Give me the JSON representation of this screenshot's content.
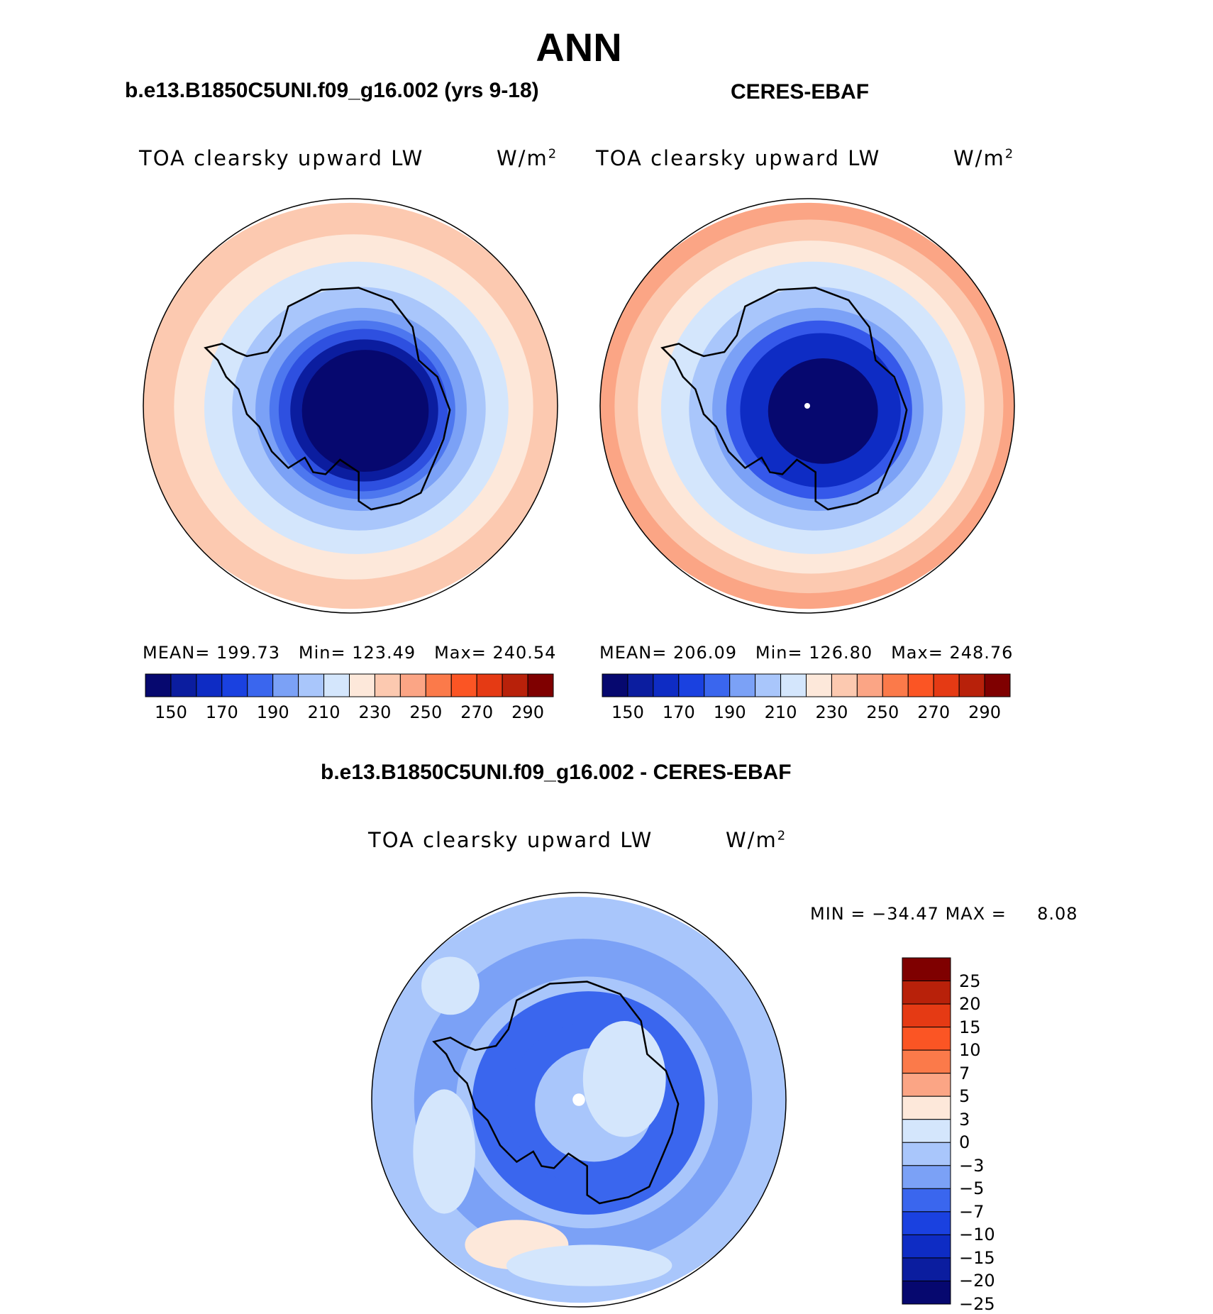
{
  "title": "ANN",
  "panels": [
    {
      "case": "b.e13.B1850C5UNI.f09_g16.002 (yrs 9-18)",
      "variable": "TOA clearsky upward LW",
      "units_base": "W/m",
      "units_exp": "2",
      "stats": {
        "mean_label": "MEAN=",
        "mean": "199.73",
        "min_label": "Min=",
        "min": "123.49",
        "max_label": "Max=",
        "max": "240.54"
      },
      "ring_colors": [
        "#fcc9b0",
        "#fde8da",
        "#d4e6fc",
        "#a9c6fb",
        "#7ba1f6",
        "#4d77ef",
        "#2e50e0",
        "#0b1d9f",
        "#06086f"
      ],
      "ring_fractions": [
        1.0,
        0.85,
        0.72,
        0.6,
        0.5,
        0.44,
        0.4,
        0.35,
        0.3
      ]
    },
    {
      "case": "CERES-EBAF",
      "variable": "TOA clearsky upward LW",
      "units_base": "W/m",
      "units_exp": "2",
      "stats": {
        "mean_label": "MEAN=",
        "mean": "206.09",
        "min_label": "Min=",
        "min": "126.80",
        "max_label": "Max=",
        "max": "248.76"
      },
      "ring_colors": [
        "#fba585",
        "#fcc9b0",
        "#fde8da",
        "#d4e6fc",
        "#a9c6fb",
        "#7ba1f6",
        "#3558ea",
        "#0e2cc4",
        "#06086f"
      ],
      "ring_fractions": [
        1.0,
        0.92,
        0.82,
        0.72,
        0.6,
        0.5,
        0.44,
        0.38,
        0.26
      ]
    }
  ],
  "top_colorbar": {
    "colors": [
      "#06086f",
      "#0b1d9f",
      "#0e2cc4",
      "#1a41e0",
      "#3a66ee",
      "#7ba1f6",
      "#a9c6fb",
      "#d4e6fc",
      "#fde8da",
      "#fcc9b0",
      "#fba585",
      "#fb7a4a",
      "#fb5524",
      "#e53a14",
      "#b8210a",
      "#7f0000"
    ],
    "tick_labels": [
      "150",
      "170",
      "190",
      "210",
      "230",
      "250",
      "270",
      "290"
    ]
  },
  "diff": {
    "case": "b.e13.B1850C5UNI.f09_g16.002 - CERES-EBAF",
    "variable": "TOA clearsky upward LW",
    "units_base": "W/m",
    "units_exp": "2",
    "min_label": "MIN =",
    "min": "−34.47",
    "max_label": "MAX =",
    "max": "8.08",
    "colorbar_colors_top_to_bottom": [
      "#7f0000",
      "#b8210a",
      "#e53a14",
      "#fb5524",
      "#fb7a4a",
      "#fba585",
      "#fde8da",
      "#d4e6fc",
      "#a9c6fb",
      "#7ba1f6",
      "#3a66ee",
      "#1a41e0",
      "#0e2cc4",
      "#0b1d9f",
      "#06086f"
    ],
    "tick_labels": [
      "25",
      "20",
      "15",
      "10",
      "7",
      "5",
      "3",
      "0",
      "−3",
      "−5",
      "−7",
      "−10",
      "−15",
      "−20",
      "−25"
    ],
    "ring_colors": [
      "#a9c6fb",
      "#7ba1f6",
      "#a9c6fb",
      "#3a66ee",
      "#3a66ee",
      "#a9c6fb"
    ],
    "ring_fractions": [
      1.0,
      0.8,
      0.62,
      0.55,
      0.4,
      0.28
    ]
  }
}
